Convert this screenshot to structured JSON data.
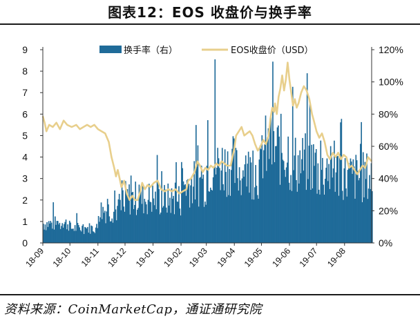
{
  "title": "图表12：EOS 收盘价与换手率",
  "source": "资料来源：CoinMarketCap，通证通研究院",
  "chart_data": {
    "type": "bar+line",
    "x_tick_labels": [
      "18-09",
      "18-10",
      "18-11",
      "18-12",
      "19-01",
      "19-02",
      "19-03",
      "19-04",
      "19-05",
      "19-06",
      "19-07",
      "19-08"
    ],
    "x_range": [
      "2018-09-01",
      "2019-08-31"
    ],
    "left_axis": {
      "ticks": [
        "0",
        "1",
        "2",
        "3",
        "4",
        "5",
        "6",
        "7",
        "8",
        "9"
      ],
      "range": [
        0,
        9
      ],
      "series": "EOS收盘价（USD）"
    },
    "right_axis": {
      "ticks": [
        "0%",
        "20%",
        "40%",
        "60%",
        "80%",
        "100%",
        "120%"
      ],
      "range": [
        0,
        1.2
      ],
      "series": "换手率（右）"
    },
    "series": [
      {
        "name": "换手率（右）",
        "kind": "bar",
        "axis": "right",
        "color": "#1f6b99",
        "monthly_typical": [
          {
            "month": "18-09",
            "value": 0.13
          },
          {
            "month": "18-10",
            "value": 0.1
          },
          {
            "month": "18-11",
            "value": 0.22
          },
          {
            "month": "18-12",
            "value": 0.3
          },
          {
            "month": "19-01",
            "value": 0.29
          },
          {
            "month": "19-02",
            "value": 0.4
          },
          {
            "month": "19-03",
            "value": 0.52
          },
          {
            "month": "19-04",
            "value": 0.48
          },
          {
            "month": "19-05",
            "value": 0.62
          },
          {
            "month": "19-06",
            "value": 0.53
          },
          {
            "month": "19-07",
            "value": 0.47
          },
          {
            "month": "19-08",
            "value": 0.44
          }
        ],
        "peak": {
          "date": "2019-03-10",
          "value": 1.14
        }
      },
      {
        "name": "EOS收盘价（USD）",
        "kind": "line",
        "axis": "left",
        "color": "#e8cf8c",
        "points": [
          [
            "2018-09-01",
            5.9
          ],
          [
            "2018-09-03",
            5.6
          ],
          [
            "2018-09-05",
            5.2
          ],
          [
            "2018-09-08",
            5.5
          ],
          [
            "2018-09-12",
            5.4
          ],
          [
            "2018-09-16",
            5.6
          ],
          [
            "2018-09-20",
            5.3
          ],
          [
            "2018-09-24",
            5.7
          ],
          [
            "2018-09-28",
            5.5
          ],
          [
            "2018-10-03",
            5.4
          ],
          [
            "2018-10-08",
            5.5
          ],
          [
            "2018-10-12",
            5.3
          ],
          [
            "2018-10-16",
            5.4
          ],
          [
            "2018-10-20",
            5.5
          ],
          [
            "2018-10-24",
            5.4
          ],
          [
            "2018-10-28",
            5.5
          ],
          [
            "2018-11-01",
            5.3
          ],
          [
            "2018-11-05",
            5.2
          ],
          [
            "2018-11-09",
            5.1
          ],
          [
            "2018-11-13",
            4.7
          ],
          [
            "2018-11-16",
            4.0
          ],
          [
            "2018-11-19",
            3.5
          ],
          [
            "2018-11-21",
            3.1
          ],
          [
            "2018-11-23",
            3.4
          ],
          [
            "2018-11-25",
            3.0
          ],
          [
            "2018-11-27",
            2.6
          ],
          [
            "2018-11-30",
            2.9
          ],
          [
            "2018-12-03",
            2.3
          ],
          [
            "2018-12-06",
            2.0
          ],
          [
            "2018-12-09",
            2.2
          ],
          [
            "2018-12-12",
            2.0
          ],
          [
            "2018-12-15",
            2.0
          ],
          [
            "2018-12-18",
            2.4
          ],
          [
            "2018-12-20",
            2.8
          ],
          [
            "2018-12-23",
            2.5
          ],
          [
            "2018-12-26",
            2.7
          ],
          [
            "2018-12-29",
            2.6
          ],
          [
            "2019-01-02",
            2.8
          ],
          [
            "2019-01-06",
            2.9
          ],
          [
            "2019-01-10",
            2.5
          ],
          [
            "2019-01-14",
            2.4
          ],
          [
            "2019-01-18",
            2.5
          ],
          [
            "2019-01-22",
            2.4
          ],
          [
            "2019-01-26",
            2.5
          ],
          [
            "2019-01-30",
            2.3
          ],
          [
            "2019-02-03",
            2.4
          ],
          [
            "2019-02-07",
            2.5
          ],
          [
            "2019-02-09",
            2.9
          ],
          [
            "2019-02-12",
            3.0
          ],
          [
            "2019-02-16",
            3.3
          ],
          [
            "2019-02-19",
            3.8
          ],
          [
            "2019-02-22",
            3.6
          ],
          [
            "2019-02-25",
            3.3
          ],
          [
            "2019-02-28",
            3.5
          ],
          [
            "2019-03-03",
            3.4
          ],
          [
            "2019-03-06",
            3.6
          ],
          [
            "2019-03-09",
            3.5
          ],
          [
            "2019-03-12",
            3.7
          ],
          [
            "2019-03-15",
            3.6
          ],
          [
            "2019-03-18",
            3.8
          ],
          [
            "2019-03-21",
            3.7
          ],
          [
            "2019-03-24",
            3.6
          ],
          [
            "2019-03-28",
            3.6
          ],
          [
            "2019-04-01",
            4.4
          ],
          [
            "2019-04-03",
            5.0
          ],
          [
            "2019-04-06",
            5.2
          ],
          [
            "2019-04-09",
            5.4
          ],
          [
            "2019-04-12",
            5.0
          ],
          [
            "2019-04-15",
            5.1
          ],
          [
            "2019-04-18",
            5.2
          ],
          [
            "2019-04-21",
            5.0
          ],
          [
            "2019-04-24",
            4.6
          ],
          [
            "2019-04-27",
            4.3
          ],
          [
            "2019-04-30",
            4.5
          ],
          [
            "2019-05-03",
            4.8
          ],
          [
            "2019-05-06",
            4.6
          ],
          [
            "2019-05-09",
            5.0
          ],
          [
            "2019-05-11",
            5.8
          ],
          [
            "2019-05-13",
            6.3
          ],
          [
            "2019-05-15",
            6.1
          ],
          [
            "2019-05-16",
            6.5
          ],
          [
            "2019-05-18",
            6.0
          ],
          [
            "2019-05-20",
            6.8
          ],
          [
            "2019-05-22",
            7.2
          ],
          [
            "2019-05-24",
            7.8
          ],
          [
            "2019-05-26",
            7.1
          ],
          [
            "2019-05-28",
            7.6
          ],
          [
            "2019-05-30",
            8.4
          ],
          [
            "2019-06-01",
            7.6
          ],
          [
            "2019-06-03",
            7.0
          ],
          [
            "2019-06-05",
            6.4
          ],
          [
            "2019-06-07",
            6.7
          ],
          [
            "2019-06-09",
            6.3
          ],
          [
            "2019-06-11",
            6.5
          ],
          [
            "2019-06-14",
            7.0
          ],
          [
            "2019-06-17",
            7.3
          ],
          [
            "2019-06-20",
            7.1
          ],
          [
            "2019-06-23",
            6.7
          ],
          [
            "2019-06-26",
            6.0
          ],
          [
            "2019-06-28",
            5.7
          ],
          [
            "2019-07-01",
            5.2
          ],
          [
            "2019-07-04",
            4.9
          ],
          [
            "2019-07-07",
            5.1
          ],
          [
            "2019-07-10",
            4.7
          ],
          [
            "2019-07-13",
            4.1
          ],
          [
            "2019-07-16",
            3.9
          ],
          [
            "2019-07-19",
            4.2
          ],
          [
            "2019-07-22",
            4.0
          ],
          [
            "2019-07-25",
            4.2
          ],
          [
            "2019-07-28",
            3.9
          ],
          [
            "2019-07-31",
            4.1
          ],
          [
            "2019-08-03",
            4.0
          ],
          [
            "2019-08-06",
            3.5
          ],
          [
            "2019-08-09",
            3.6
          ],
          [
            "2019-08-12",
            3.4
          ],
          [
            "2019-08-15",
            3.2
          ],
          [
            "2019-08-18",
            3.4
          ],
          [
            "2019-08-21",
            3.6
          ],
          [
            "2019-08-24",
            3.5
          ],
          [
            "2019-08-27",
            4.0
          ],
          [
            "2019-08-29",
            3.9
          ],
          [
            "2019-08-31",
            3.8
          ]
        ]
      }
    ],
    "legend_position": "top",
    "grid": false
  }
}
